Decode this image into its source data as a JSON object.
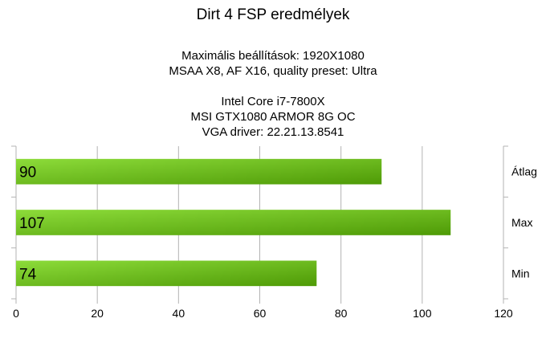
{
  "chart_data": {
    "type": "bar",
    "orientation": "horizontal",
    "title": "Dirt 4 FSP eredmélyek",
    "subtitle_lines": [
      "Maximális beállítások: 1920X1080",
      "MSAA X8, AF X16, quality preset: Ultra",
      "",
      "Intel Core i7-7800X",
      "MSI GTX1080 ARMOR 8G OC",
      "VGA driver: 22.21.13.8541"
    ],
    "categories": [
      "Átlag",
      "Max",
      "Min"
    ],
    "values": [
      90,
      107,
      74
    ],
    "xlim": [
      0,
      120
    ],
    "xticks": [
      0,
      20,
      40,
      60,
      80,
      100,
      120
    ],
    "grid": true,
    "category_label_position": "right",
    "data_labels": "inside-left",
    "colors": {
      "bar_start": "#8ddc3a",
      "bar_end": "#4e9a06",
      "grid": "#b3b3b3"
    }
  }
}
